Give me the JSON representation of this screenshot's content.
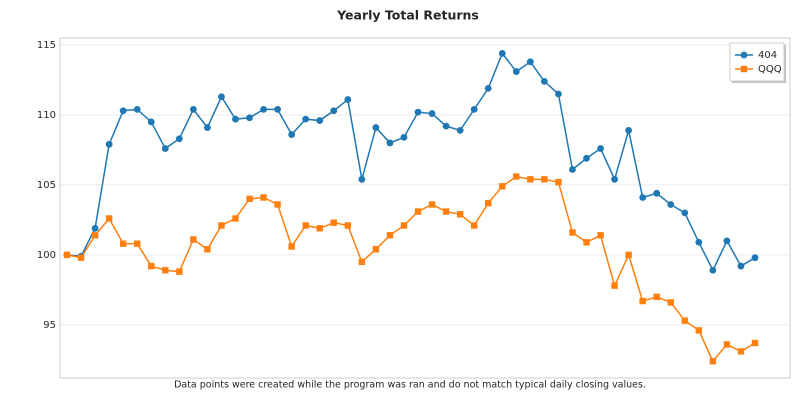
{
  "chart_data": {
    "type": "line",
    "title": "Yearly Total Returns",
    "annotation": "Data points were created while the program was ran and do not match typical daily closing values.",
    "series": [
      {
        "name": "404",
        "color": "#1f77b4",
        "marker": "circle",
        "values": [
          100,
          99.9,
          101.9,
          107.9,
          110.3,
          110.4,
          109.5,
          107.6,
          108.3,
          110.4,
          109.1,
          111.3,
          109.7,
          109.8,
          110.4,
          110.4,
          108.6,
          109.7,
          109.6,
          110.3,
          111.1,
          105.4,
          109.1,
          108.0,
          108.4,
          110.2,
          110.1,
          109.2,
          108.9,
          110.4,
          111.9,
          114.4,
          113.1,
          113.8,
          112.4,
          111.5,
          106.1,
          106.9,
          107.6,
          105.4,
          108.9,
          104.1,
          104.4,
          103.6,
          103.0,
          100.9,
          98.9,
          101.0,
          99.2,
          99.8
        ]
      },
      {
        "name": "QQQ",
        "color": "#ff7f0e",
        "marker": "square",
        "values": [
          100,
          99.8,
          101.4,
          102.6,
          100.8,
          100.8,
          99.2,
          98.9,
          98.8,
          101.1,
          100.4,
          102.1,
          102.6,
          104.0,
          104.1,
          103.6,
          100.6,
          102.1,
          101.9,
          102.3,
          102.1,
          99.5,
          100.4,
          101.4,
          102.1,
          103.1,
          103.6,
          103.1,
          102.9,
          102.1,
          103.7,
          104.9,
          105.6,
          105.4,
          105.4,
          105.2,
          101.6,
          100.9,
          101.4,
          97.8,
          100.0,
          96.7,
          97.0,
          96.6,
          95.3,
          94.6,
          92.4,
          93.6,
          93.1,
          93.7
        ]
      }
    ],
    "ylim": [
      91.2,
      115.5
    ],
    "yticks": [
      95,
      100,
      105,
      110,
      115
    ],
    "grid": true,
    "legend": "upper right"
  }
}
